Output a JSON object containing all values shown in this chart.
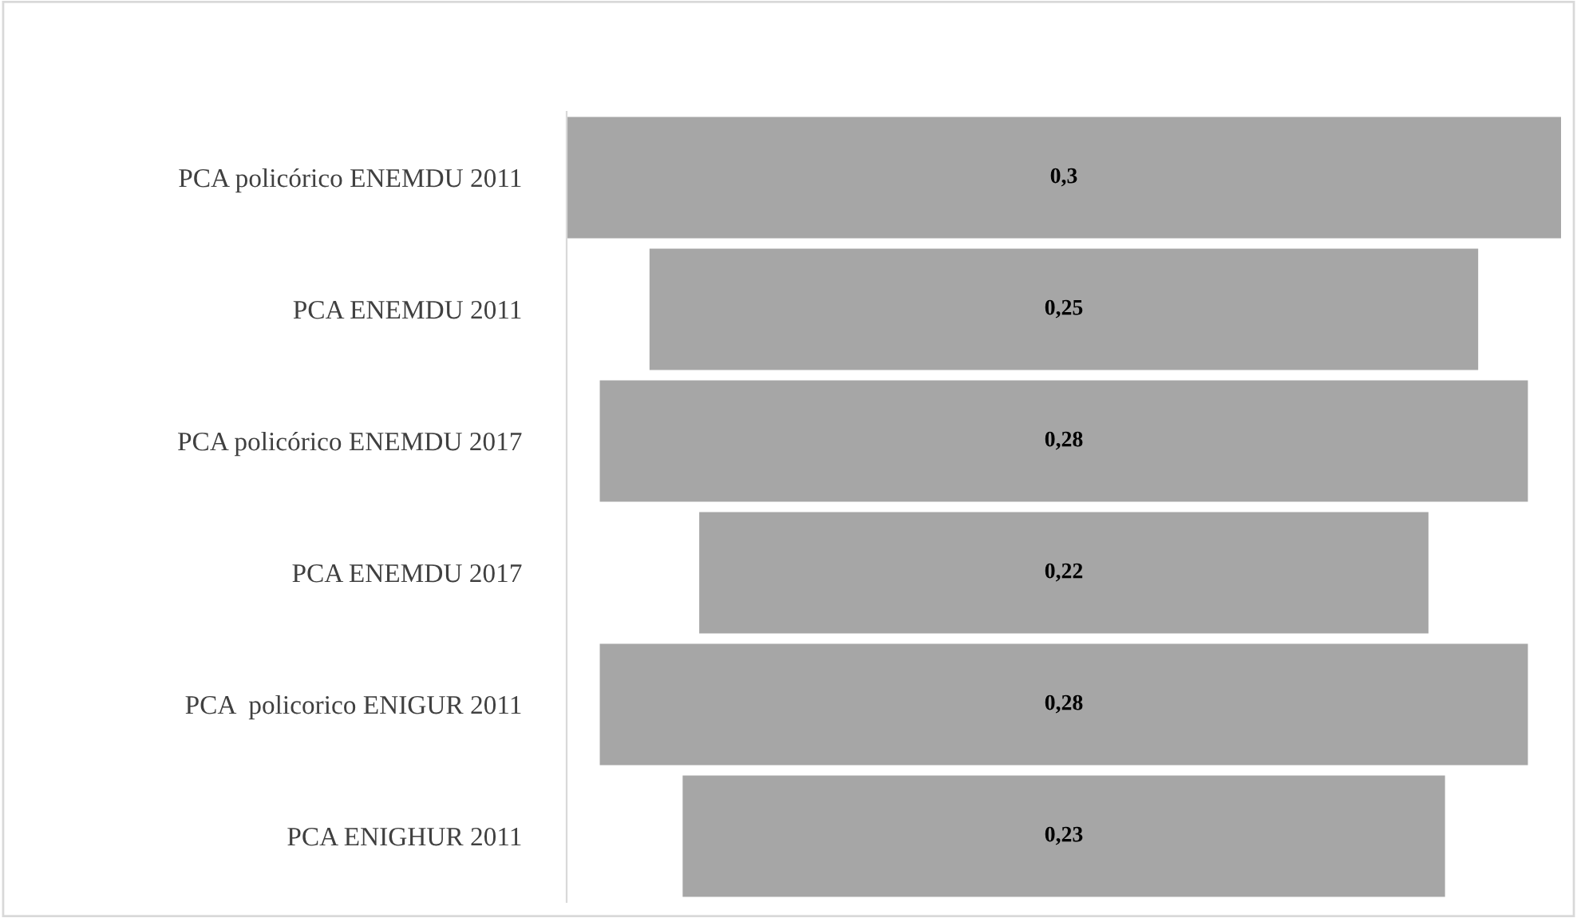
{
  "chart_data": {
    "type": "other",
    "categories": [
      "PCA policórico ENEMDU 2011",
      "PCA ENEMDU 2011",
      "PCA policórico ENEMDU 2017",
      "PCA ENEMDU 2017",
      "PCA  policorico ENIGUR 2011",
      "PCA ENIGHUR 2011"
    ],
    "values": [
      0.3,
      0.25,
      0.28,
      0.22,
      0.28,
      0.23
    ],
    "value_labels": [
      "0,3",
      "0,25",
      "0,28",
      "0,22",
      "0,28",
      "0,23"
    ],
    "color": "#a6a6a6"
  }
}
